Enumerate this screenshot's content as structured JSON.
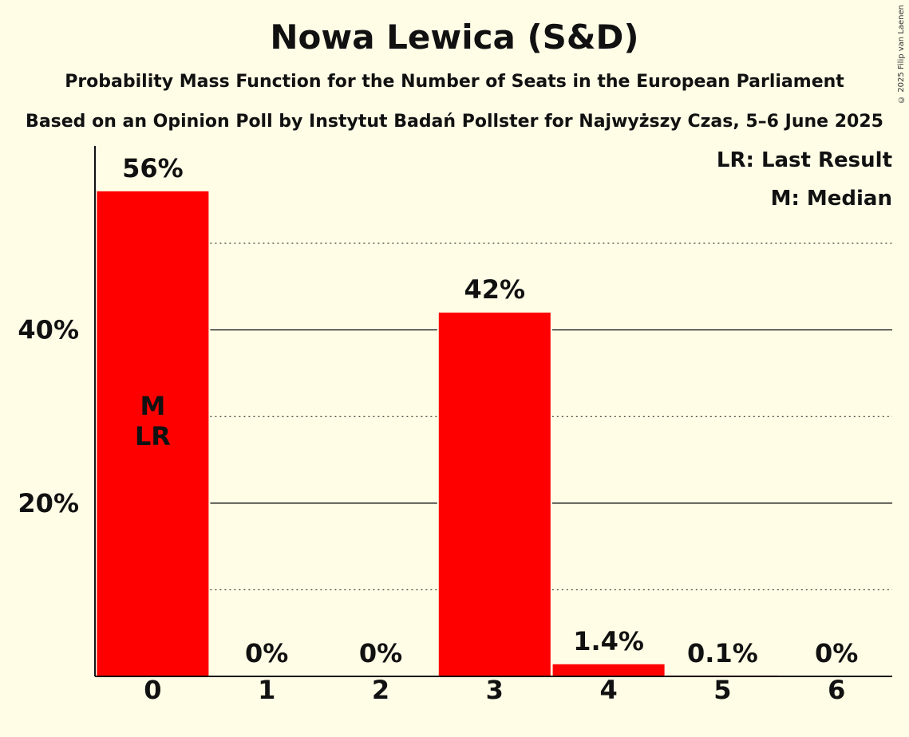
{
  "chart_data": {
    "type": "bar",
    "title": "Nowa Lewica (S&D)",
    "subtitle": "Probability Mass Function for the Number of Seats in the European Parliament",
    "subtitle2": "Based on an Opinion Poll by Instytut Badań Pollster for Najwyższy Czas, 5–6 June 2025",
    "categories": [
      "0",
      "1",
      "2",
      "3",
      "4",
      "5",
      "6"
    ],
    "values": [
      56,
      0,
      0,
      42,
      1.4,
      0.1,
      0
    ],
    "value_labels": [
      "56%",
      "0%",
      "0%",
      "42%",
      "1.4%",
      "0.1%",
      "0%"
    ],
    "ylim": [
      0,
      61
    ],
    "y_ticks": [
      20,
      40
    ],
    "y_tick_labels": [
      "20%",
      "40%"
    ],
    "minor_gridlines": [
      10,
      30,
      50
    ],
    "bar_color": "#ff0000",
    "background": "#fffde6",
    "legend": [
      "LR: Last Result",
      "M: Median"
    ],
    "legend_position": "top-right",
    "bar_annotations": [
      {
        "category": "0",
        "lines": [
          "M",
          "LR"
        ]
      }
    ],
    "copyright": "© 2025 Filip van Laenen"
  }
}
